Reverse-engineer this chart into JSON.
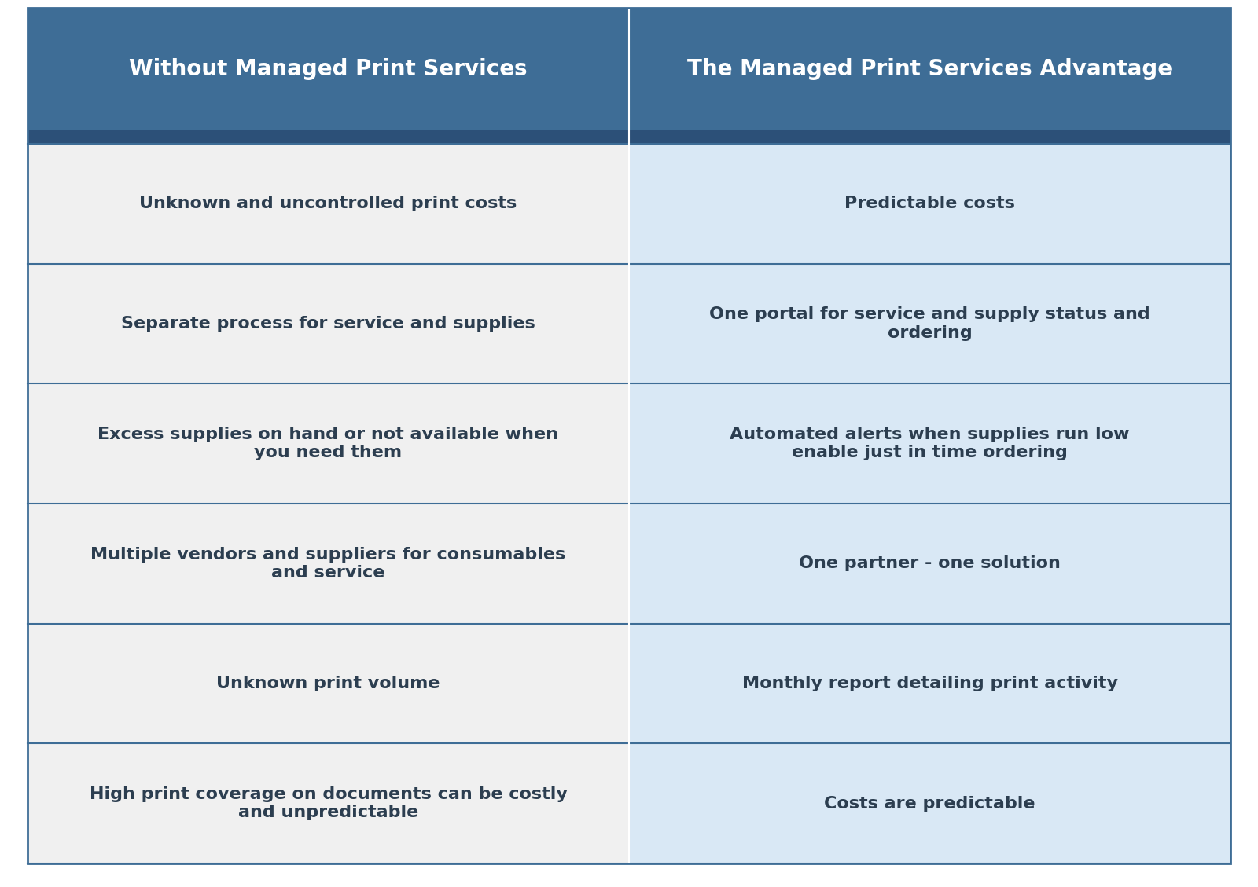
{
  "col1_header": "Without Managed Print Services",
  "col2_header": "The Managed Print Services Advantage",
  "rows": [
    [
      "Unknown and uncontrolled print costs",
      "Predictable costs"
    ],
    [
      "Separate process for service and supplies",
      "One portal for service and supply status and\nordering"
    ],
    [
      "Excess supplies on hand or not available when\nyou need them",
      "Automated alerts when supplies run low\nenable just in time ordering"
    ],
    [
      "Multiple vendors and suppliers for consumables\nand service",
      "One partner - one solution"
    ],
    [
      "Unknown print volume",
      "Monthly report detailing print activity"
    ],
    [
      "High print coverage on documents can be costly\nand unpredictable",
      "Costs are predictable"
    ]
  ],
  "header_bg_color": "#3E6D96",
  "header_text_color": "#FFFFFF",
  "col1_row_bg_color": "#F0F0F0",
  "col2_row_bg_color": "#D9E8F5",
  "row_text_color": "#2C3E50",
  "divider_color": "#3E6D96",
  "header_stripe_color": "#2C5078",
  "outer_border_color": "#3E6D96",
  "header_fontsize": 20,
  "row_fontsize": 16,
  "fig_width": 16.0,
  "fig_height": 11.29
}
